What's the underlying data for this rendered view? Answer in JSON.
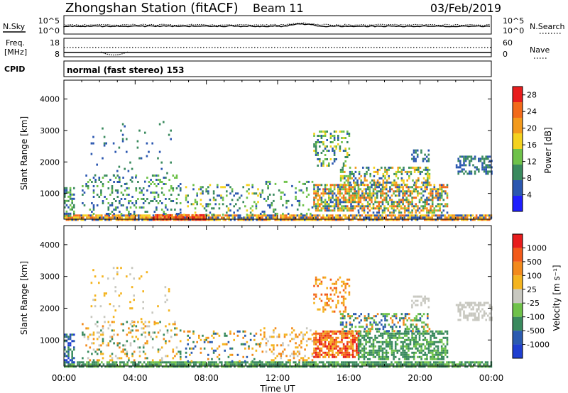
{
  "header": {
    "station": "Zhongshan Station (fitACF)",
    "beam": "Beam 11",
    "date": "03/Feb/2019"
  },
  "noise_panel": {
    "left_label": "N.Sky",
    "left_ticks": [
      "10^5",
      "10^0"
    ],
    "right_label": "N.Search",
    "right_ticks": [
      "10^5",
      "10^0"
    ]
  },
  "freq_panel": {
    "left_label_1": "Freq.",
    "left_label_2": "[MHz]",
    "left_ticks": [
      "18",
      "8"
    ],
    "right_label": "Nave",
    "right_ticks": [
      "60",
      "0"
    ]
  },
  "cpid": {
    "label": "CPID",
    "mode": "normal (fast stereo) 153"
  },
  "chart_data": [
    {
      "type": "heatmap",
      "name": "power",
      "ylabel": "Slant Range [km]",
      "xlabel": "",
      "x_ticks": [
        "00:00",
        "04:00",
        "08:00",
        "12:00",
        "16:00",
        "20:00",
        "00:00"
      ],
      "xlim_hours": [
        0,
        24
      ],
      "ylim_km": [
        180,
        4600
      ],
      "y_ticks": [
        "1000",
        "2000",
        "3000",
        "4000"
      ],
      "colorbar": {
        "label": "Power [dB]",
        "ticks": [
          "4",
          "8",
          "12",
          "16",
          "20",
          "24",
          "28"
        ],
        "range": [
          0,
          30
        ],
        "colors": [
          "#1f1fff",
          "#2b57b0",
          "#3a8a5e",
          "#6fc24a",
          "#f4d21f",
          "#f39a1c",
          "#f26a1a",
          "#e81d1d"
        ]
      },
      "scatter_regions": [
        {
          "t0": 0.0,
          "t1": 24.0,
          "r0": 190,
          "r1": 330,
          "density": 0.85,
          "levels": [
            1,
            4,
            5,
            6
          ]
        },
        {
          "t0": 5.0,
          "t1": 8.0,
          "r0": 200,
          "r1": 340,
          "density": 0.9,
          "levels": [
            7,
            6,
            5
          ]
        },
        {
          "t0": 0.0,
          "t1": 0.6,
          "r0": 300,
          "r1": 1200,
          "density": 0.6,
          "levels": [
            1,
            2,
            3
          ]
        },
        {
          "t0": 1.0,
          "t1": 6.5,
          "r0": 350,
          "r1": 1600,
          "density": 0.18,
          "levels": [
            1,
            2,
            3
          ]
        },
        {
          "t0": 6.5,
          "t1": 11.0,
          "r0": 350,
          "r1": 1300,
          "density": 0.18,
          "levels": [
            1,
            2,
            3,
            4
          ]
        },
        {
          "t0": 11.0,
          "t1": 14.0,
          "r0": 350,
          "r1": 1400,
          "density": 0.2,
          "levels": [
            1,
            2,
            3
          ]
        },
        {
          "t0": 14.0,
          "t1": 16.5,
          "r0": 450,
          "r1": 1300,
          "density": 0.75,
          "levels": [
            1,
            2,
            3,
            4,
            5,
            6
          ]
        },
        {
          "t0": 16.5,
          "t1": 21.5,
          "r0": 400,
          "r1": 1300,
          "density": 0.6,
          "levels": [
            1,
            2,
            3,
            4,
            5,
            6
          ]
        },
        {
          "t0": 15.5,
          "t1": 20.5,
          "r0": 1300,
          "r1": 1850,
          "density": 0.45,
          "levels": [
            1,
            2,
            3,
            4,
            5
          ]
        },
        {
          "t0": 14.0,
          "t1": 16.0,
          "r0": 1900,
          "r1": 3000,
          "density": 0.3,
          "levels": [
            1,
            2,
            3,
            4
          ]
        },
        {
          "t0": 22.0,
          "t1": 24.0,
          "r0": 1600,
          "r1": 2200,
          "density": 0.5,
          "levels": [
            1,
            2
          ]
        },
        {
          "t0": 19.5,
          "t1": 20.5,
          "r0": 2000,
          "r1": 2400,
          "density": 0.4,
          "levels": [
            1,
            2
          ]
        },
        {
          "t0": 1.5,
          "t1": 6.0,
          "r0": 1300,
          "r1": 3300,
          "density": 0.04,
          "levels": [
            1,
            2
          ]
        }
      ]
    },
    {
      "type": "heatmap",
      "name": "velocity",
      "ylabel": "Slant Range [km]",
      "xlabel": "Time UT",
      "x_ticks": [
        "00:00",
        "04:00",
        "08:00",
        "12:00",
        "16:00",
        "20:00",
        "00:00"
      ],
      "xlim_hours": [
        0,
        24
      ],
      "ylim_km": [
        180,
        4600
      ],
      "y_ticks": [
        "1000",
        "2000",
        "3000",
        "4000"
      ],
      "colorbar": {
        "label": "Velocity [m s⁻¹]",
        "ticks": [
          "1000",
          "500",
          "100",
          "25",
          "-25",
          "-100",
          "-500",
          "-1000"
        ],
        "range": [
          -1000,
          1000
        ],
        "colors": [
          "#1f3fd0",
          "#2b5bb0",
          "#3a8a5e",
          "#6fc24a",
          "#c8c8c0",
          "#f4b41f",
          "#f38a1c",
          "#f25a1a",
          "#e81d1d"
        ]
      },
      "scatter_regions": [
        {
          "t0": 0.0,
          "t1": 24.0,
          "r0": 190,
          "r1": 330,
          "density": 0.85,
          "levels": [
            2,
            3,
            2
          ]
        },
        {
          "t0": 0.0,
          "t1": 0.6,
          "r0": 300,
          "r1": 1200,
          "density": 0.6,
          "levels": [
            0,
            1,
            2
          ]
        },
        {
          "t0": 1.0,
          "t1": 6.5,
          "r0": 350,
          "r1": 1600,
          "density": 0.18,
          "levels": [
            4,
            5,
            6,
            2
          ]
        },
        {
          "t0": 6.5,
          "t1": 11.0,
          "r0": 350,
          "r1": 1300,
          "density": 0.18,
          "levels": [
            5,
            6,
            1,
            2
          ]
        },
        {
          "t0": 11.0,
          "t1": 14.0,
          "r0": 350,
          "r1": 1400,
          "density": 0.2,
          "levels": [
            5,
            6,
            4
          ]
        },
        {
          "t0": 14.0,
          "t1": 16.5,
          "r0": 450,
          "r1": 1300,
          "density": 0.75,
          "levels": [
            6,
            7,
            5,
            8
          ]
        },
        {
          "t0": 16.5,
          "t1": 21.5,
          "r0": 400,
          "r1": 1300,
          "density": 0.6,
          "levels": [
            2,
            3,
            2
          ]
        },
        {
          "t0": 15.5,
          "t1": 20.5,
          "r0": 1300,
          "r1": 1850,
          "density": 0.45,
          "levels": [
            2,
            3,
            6,
            1
          ]
        },
        {
          "t0": 14.0,
          "t1": 16.0,
          "r0": 1900,
          "r1": 3000,
          "density": 0.3,
          "levels": [
            6,
            7,
            5
          ]
        },
        {
          "t0": 22.0,
          "t1": 24.0,
          "r0": 1600,
          "r1": 2200,
          "density": 0.5,
          "levels": [
            4
          ]
        },
        {
          "t0": 19.5,
          "t1": 20.5,
          "r0": 2000,
          "r1": 2400,
          "density": 0.4,
          "levels": [
            4
          ]
        },
        {
          "t0": 1.5,
          "t1": 6.0,
          "r0": 1300,
          "r1": 3300,
          "density": 0.04,
          "levels": [
            4,
            5
          ]
        }
      ]
    }
  ]
}
